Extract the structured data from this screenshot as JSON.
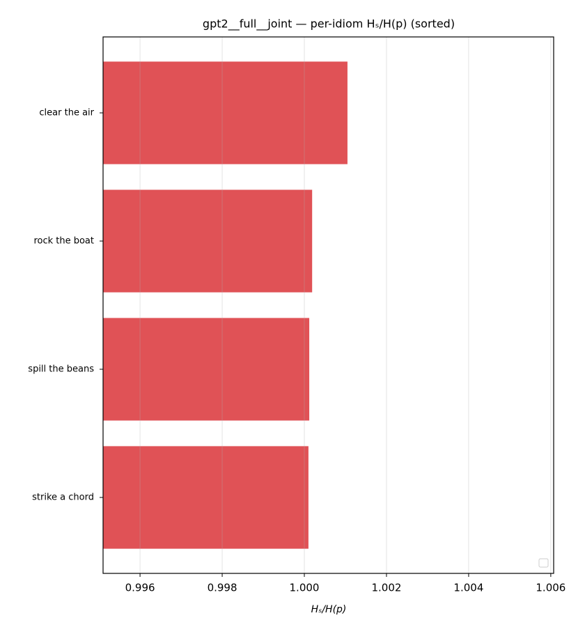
{
  "chart_data": {
    "type": "bar",
    "orientation": "horizontal",
    "title": "gpt2__full__joint — per-idiom Hₛ/H(p) (sorted)",
    "xlabel": "Hₛ/H(p)",
    "categories": [
      "clear the air",
      "rock the boat",
      "spill the beans",
      "strike a chord"
    ],
    "values": [
      1.00105,
      1.00019,
      1.00012,
      1.0001
    ],
    "color": "#e05256",
    "xlim": [
      0.9951,
      1.00607
    ],
    "xticks": [
      {
        "value": 0.996,
        "label": "0.996"
      },
      {
        "value": 0.998,
        "label": "0.998"
      },
      {
        "value": 1.0,
        "label": "1.000"
      },
      {
        "value": 1.002,
        "label": "1.002"
      },
      {
        "value": 1.004,
        "label": "1.004"
      },
      {
        "value": 1.006,
        "label": "1.006"
      }
    ],
    "grid": true
  }
}
